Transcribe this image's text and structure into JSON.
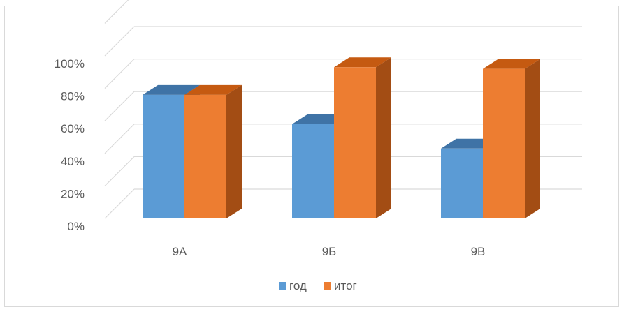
{
  "chart_data": {
    "type": "bar",
    "title": "",
    "xlabel": "",
    "ylabel": "",
    "categories": [
      "9А",
      "9Б",
      "9В"
    ],
    "series": [
      {
        "name": "год",
        "values": [
          0.76,
          0.58,
          0.43
        ]
      },
      {
        "name": "итог",
        "values": [
          0.76,
          0.93,
          0.92
        ]
      }
    ],
    "yticks": [
      "0%",
      "20%",
      "40%",
      "60%",
      "80%",
      "100%"
    ],
    "ylim": [
      0,
      1.2
    ],
    "grid": true,
    "three_d": true,
    "legend_position": "bottom",
    "colors": {
      "god_front": "#5b9bd5",
      "god_top": "#3f73a6",
      "god_side": "#3a6898",
      "itog_front": "#ed7d31",
      "itog_top": "#c55a11",
      "itog_side": "#a34d14",
      "grid": "#d9d9d9",
      "text": "#595959"
    }
  }
}
